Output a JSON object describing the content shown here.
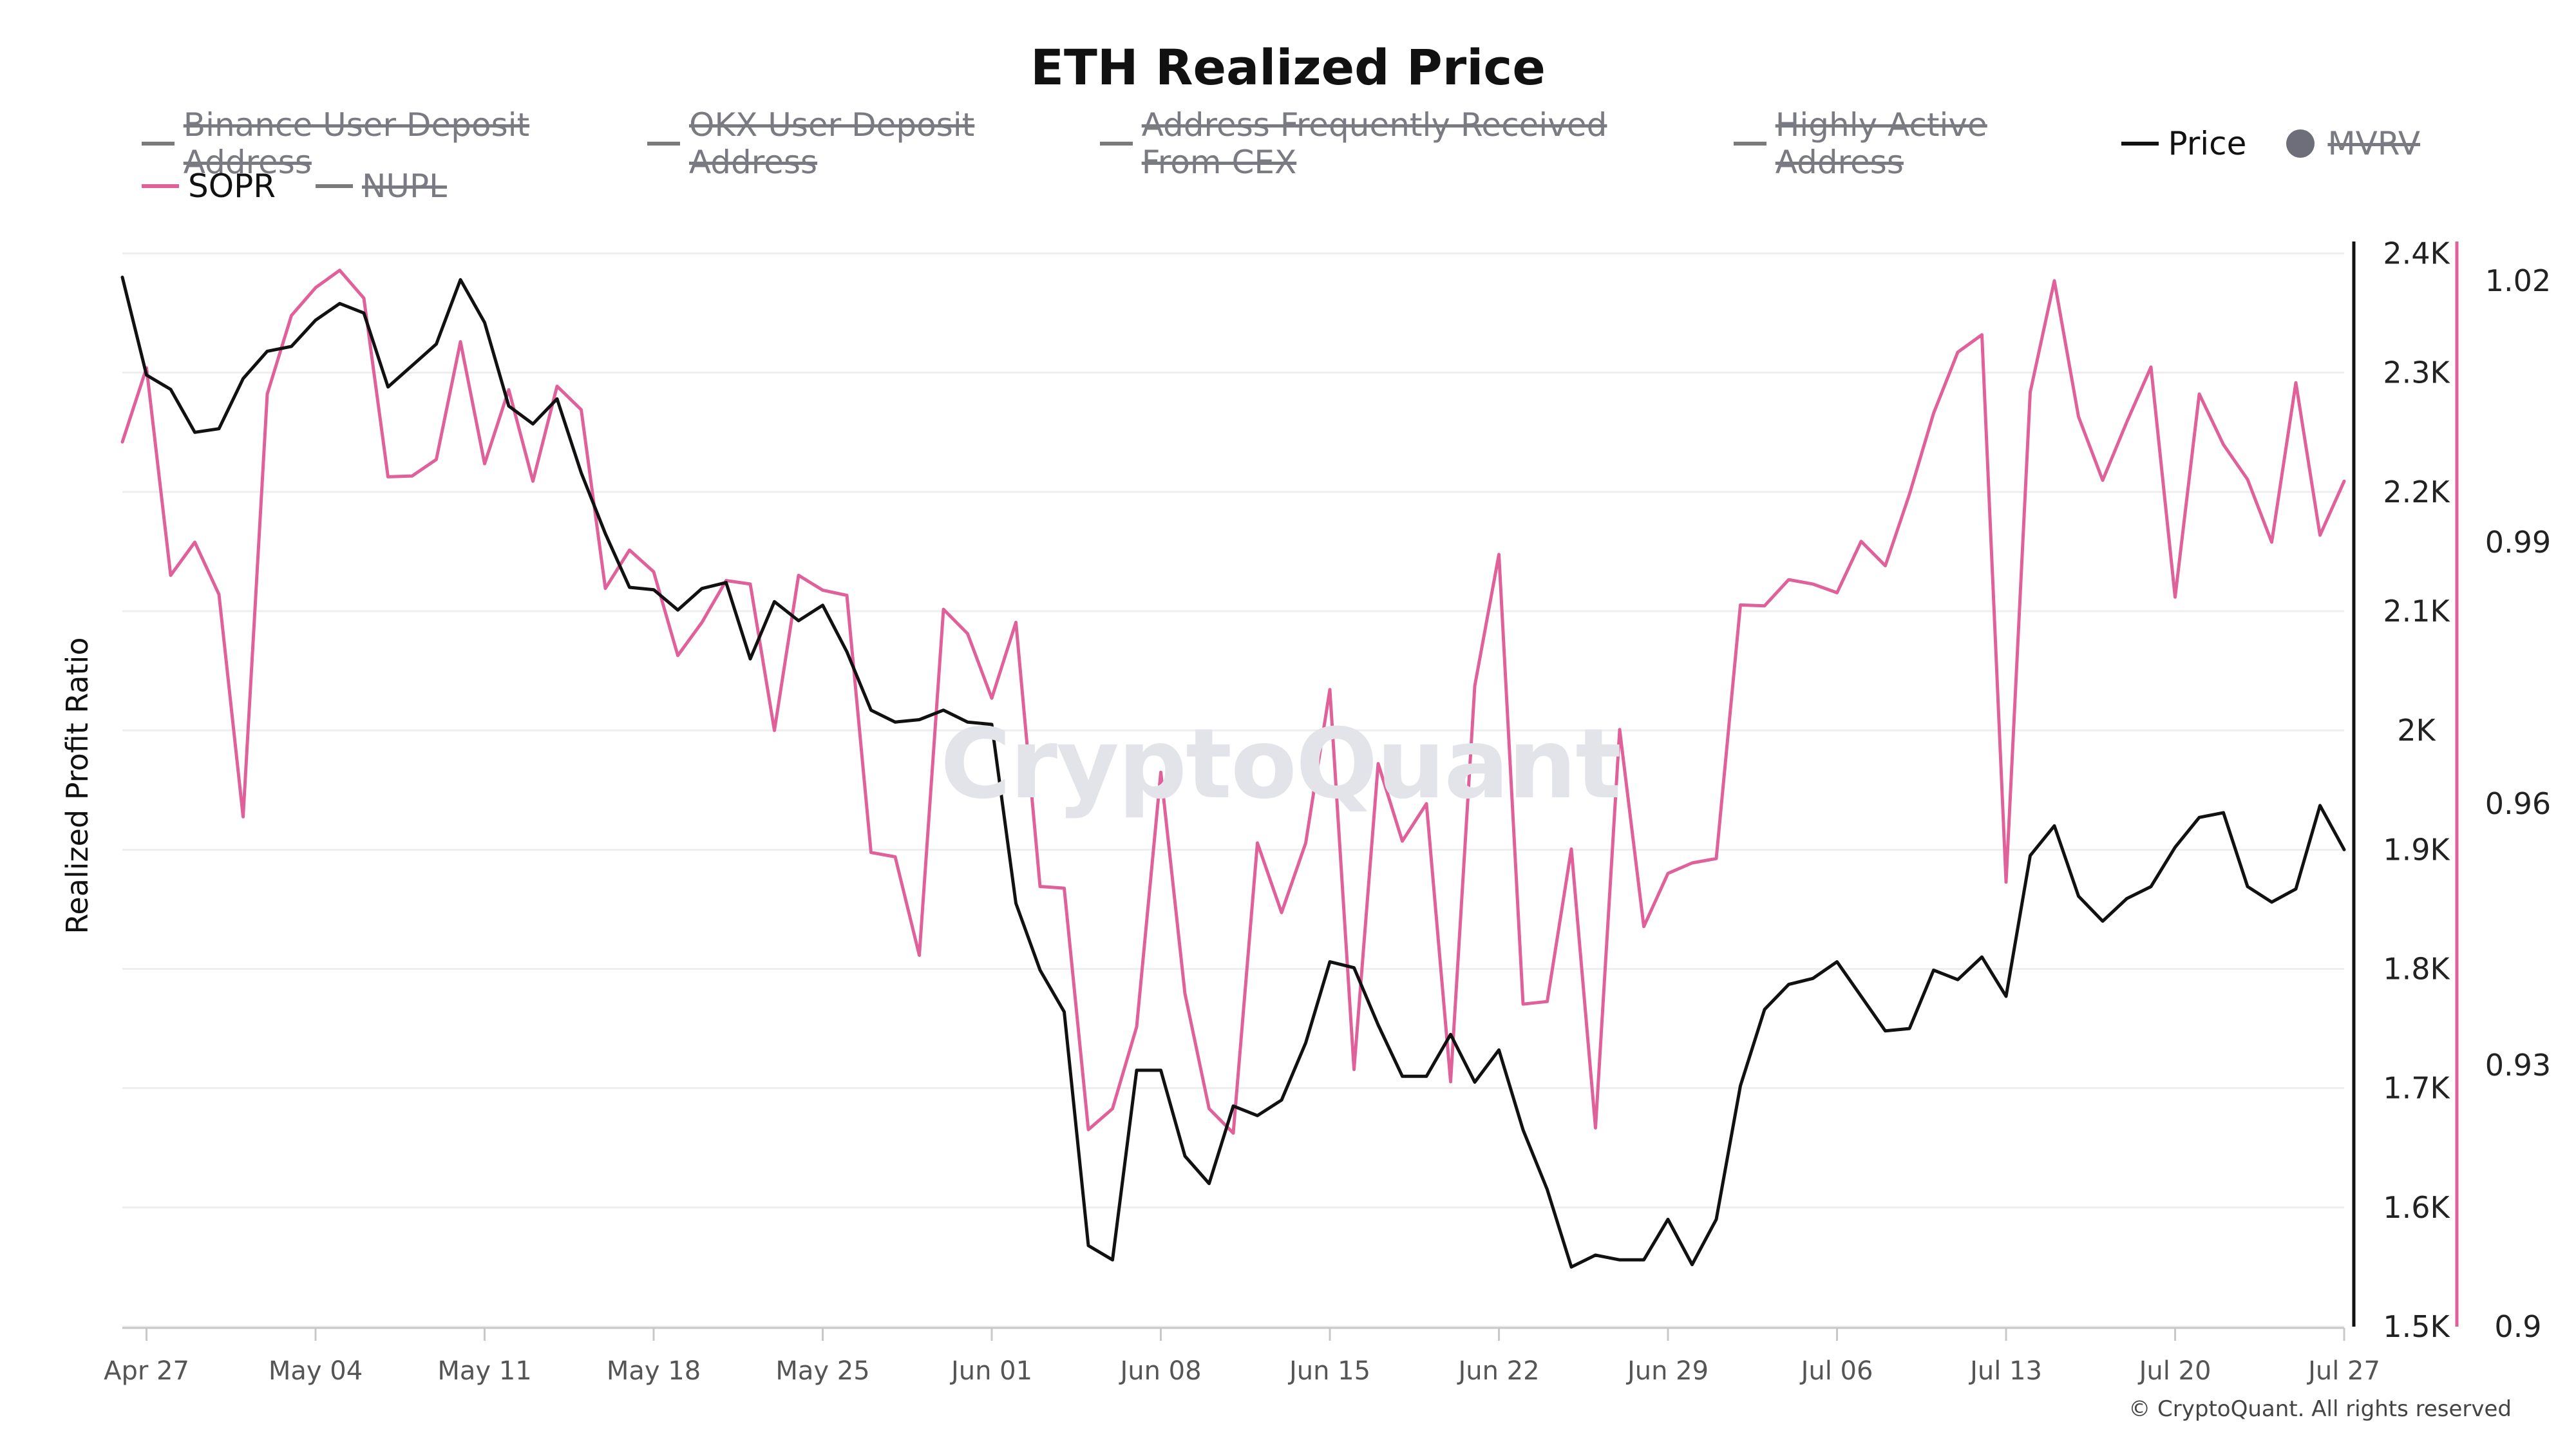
{
  "title": "ETH Realized Price",
  "legend": [
    {
      "name": "Binance User Deposit Address",
      "active": false,
      "marker": "line"
    },
    {
      "name": "OKX User Deposit Address",
      "active": false,
      "marker": "line"
    },
    {
      "name": "Address Frequently Received From CEX",
      "active": false,
      "marker": "line"
    },
    {
      "name": "Highly Active Address",
      "active": false,
      "marker": "line"
    },
    {
      "name": "Price",
      "active": true,
      "marker": "line",
      "color": "#111111"
    },
    {
      "name": "MVRV",
      "active": false,
      "marker": "dot",
      "color": "#6e6e7a"
    },
    {
      "name": "SOPR",
      "active": true,
      "marker": "line",
      "color": "#e0609a"
    },
    {
      "name": "NUPL",
      "active": false,
      "marker": "line"
    }
  ],
  "watermark": "CryptoQuant",
  "credit": "© CryptoQuant. All rights reserved",
  "chart_data": {
    "type": "line",
    "title": "ETH Realized Price",
    "ylabel": "Realized Profit Ratio",
    "x_start": "Apr 26",
    "x_end": "Jul 27",
    "x_ticks": [
      "Apr 27",
      "May 04",
      "May 11",
      "May 18",
      "May 25",
      "Jun 01",
      "Jun 08",
      "Jun 15",
      "Jun 22",
      "Jun 29",
      "Jul 06",
      "Jul 13",
      "Jul 20",
      "Jul 27"
    ],
    "y_price": {
      "ticks": [
        1500,
        1600,
        1700,
        1800,
        1900,
        2000,
        2100,
        2200,
        2300,
        2400
      ],
      "tick_labels": [
        "1.5K",
        "1.6K",
        "1.7K",
        "1.8K",
        "1.9K",
        "2K",
        "2.1K",
        "2.2K",
        "2.3K",
        "2.4K"
      ],
      "range": [
        1500,
        2410
      ],
      "color": "#111111"
    },
    "y_sopr": {
      "ticks": [
        0.9,
        0.93,
        0.96,
        0.99,
        1.02
      ],
      "tick_labels": [
        "0.9",
        "0.93",
        "0.96",
        "0.99",
        "1.02"
      ],
      "range": [
        0.9,
        1.0245
      ],
      "color": "#e0609a"
    },
    "grid": true,
    "legend_position": "top",
    "series": [
      {
        "name": "Price",
        "axis": "right-1",
        "color": "#111111",
        "values": [
          2380,
          2298,
          2286,
          2250,
          2253,
          2295,
          2318,
          2322,
          2344,
          2358,
          2350,
          2288,
          2306,
          2324,
          2378,
          2342,
          2272,
          2257,
          2278,
          2216,
          2165,
          2120,
          2118,
          2101,
          2119,
          2124,
          2060,
          2108,
          2092,
          2105,
          2066,
          2017,
          2007,
          2009,
          2017,
          2007,
          2005,
          1855,
          1799,
          1764,
          1568,
          1556,
          1715,
          1715,
          1643,
          1620,
          1685,
          1677,
          1690,
          1738,
          1806,
          1801,
          1753,
          1710,
          1710,
          1745,
          1705,
          1732,
          1665,
          1615,
          1550,
          1560,
          1556,
          1556,
          1590,
          1552,
          1590,
          1702,
          1766,
          1787,
          1792,
          1806,
          1777,
          1748,
          1750,
          1799,
          1791,
          1810,
          1777,
          1895,
          1920,
          1861,
          1840,
          1859,
          1869,
          1902,
          1927,
          1931,
          1869,
          1856,
          1867,
          1937,
          1900
        ]
      },
      {
        "name": "SOPR",
        "axis": "right-2",
        "color": "#e0609a",
        "values": [
          1.0015,
          1.01,
          0.9862,
          0.99,
          0.984,
          0.9585,
          1.007,
          1.016,
          1.0192,
          1.0212,
          1.018,
          0.9975,
          0.9976,
          0.9995,
          1.013,
          0.999,
          1.0075,
          0.997,
          1.0079,
          1.0052,
          0.9847,
          0.9891,
          0.9866,
          0.977,
          0.9808,
          0.9856,
          0.9852,
          0.9684,
          0.9862,
          0.9845,
          0.9839,
          0.9544,
          0.9539,
          0.9426,
          0.9823,
          0.9795,
          0.9721,
          0.9808,
          0.9505,
          0.9503,
          0.9226,
          0.925,
          0.9344,
          0.9636,
          0.9382,
          0.925,
          0.9222,
          0.9555,
          0.9475,
          0.9555,
          0.9731,
          0.9295,
          0.9646,
          0.9557,
          0.96,
          0.9281,
          0.9735,
          0.9886,
          0.937,
          0.9373,
          0.9548,
          0.9228,
          0.9685,
          0.9459,
          0.952,
          0.9532,
          0.9537,
          0.9828,
          0.9827,
          0.9857,
          0.9852,
          0.9842,
          0.9901,
          0.9873,
          0.9955,
          1.0048,
          1.0118,
          1.0138,
          0.951,
          1.0072,
          1.02,
          1.0044,
          0.9971,
          1.0038,
          1.0101,
          0.9837,
          1.007,
          1.0012,
          0.9972,
          0.99,
          1.0083,
          0.9908,
          0.997
        ]
      }
    ]
  }
}
